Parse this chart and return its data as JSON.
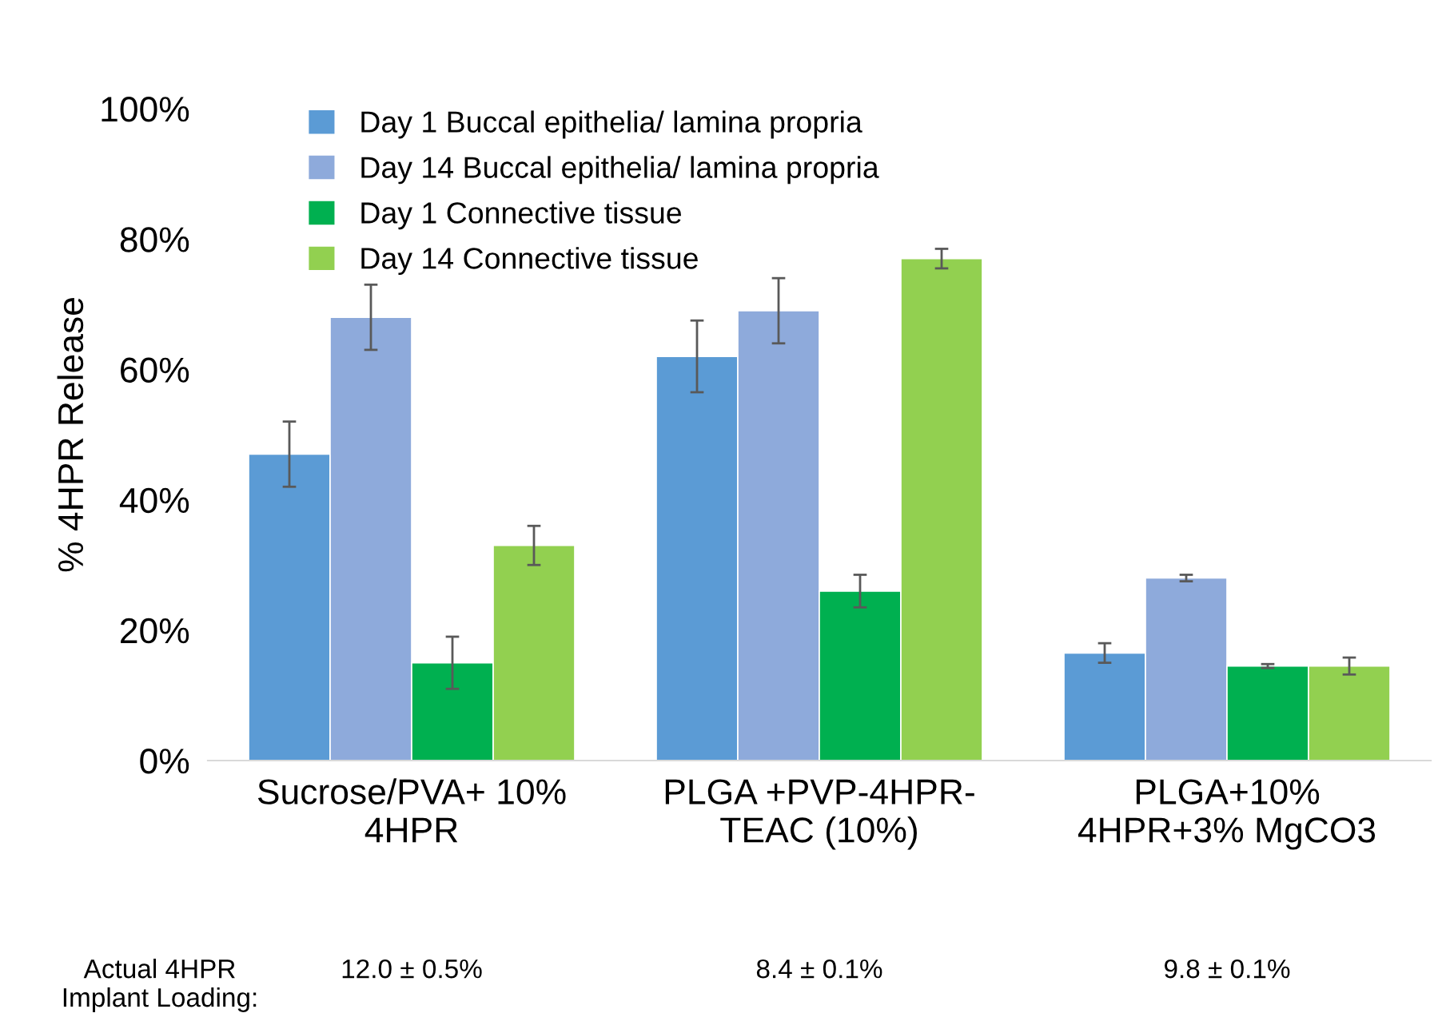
{
  "chart_data": {
    "type": "bar",
    "ylabel": "% 4HPR Release",
    "categories": [
      "Sucrose/PVA+ 10%\n4HPR",
      "PLGA +PVP-4HPR-\nTEAC (10%)",
      "PLGA+10%\n4HPR+3% MgCO3"
    ],
    "series": [
      {
        "name": "Day 1 Buccal epithelia/ lamina propria",
        "color": "#5b9bd5",
        "values": [
          47,
          62,
          16.5
        ],
        "errors": [
          5,
          5.5,
          1.5
        ]
      },
      {
        "name": "Day 14 Buccal epithelia/ lamina propria",
        "color": "#8eaadb",
        "values": [
          68,
          69,
          28
        ],
        "errors": [
          5,
          5,
          0.5
        ]
      },
      {
        "name": "Day 1 Connective tissue",
        "color": "#00b050",
        "values": [
          15,
          26,
          14.5
        ],
        "errors": [
          4,
          2.5,
          0.3
        ]
      },
      {
        "name": "Day 14 Connective tissue",
        "color": "#92d050",
        "values": [
          33,
          77,
          14.5
        ],
        "errors": [
          3,
          1.5,
          1.3
        ]
      }
    ],
    "ylim": [
      0,
      100
    ],
    "yticks": [
      {
        "value": 0,
        "label": "0%"
      },
      {
        "value": 20,
        "label": "20%"
      },
      {
        "value": 40,
        "label": "40%"
      },
      {
        "value": 60,
        "label": "60%"
      },
      {
        "value": 80,
        "label": "80%"
      },
      {
        "value": 100,
        "label": "100%"
      }
    ],
    "grid": false,
    "legend": "top left",
    "annotations": [
      "Actual 4HPR\nImplant Loading:",
      "12.0 ± 0.5%",
      "8.4 ± 0.1%",
      "9.8 ± 0.1%"
    ]
  }
}
